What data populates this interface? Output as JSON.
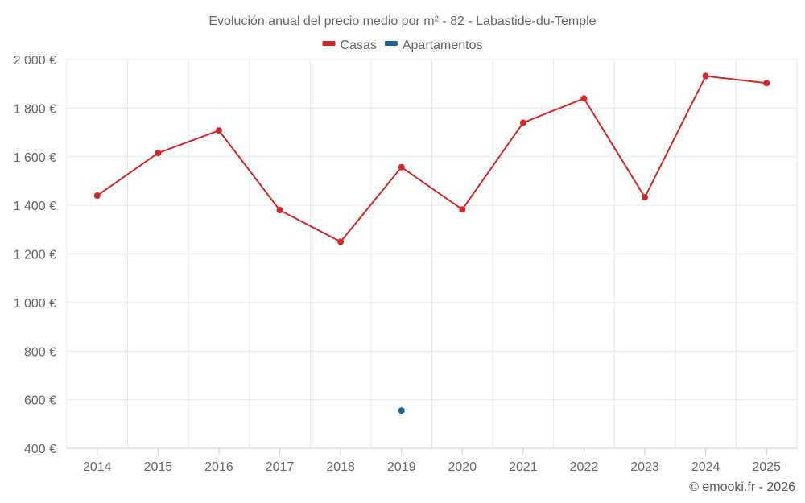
{
  "chart_data": {
    "type": "line",
    "title": "Evolución anual del precio medio por m² - 82 - Labastide-du-Temple",
    "categories": [
      "2014",
      "2015",
      "2016",
      "2017",
      "2018",
      "2019",
      "2020",
      "2021",
      "2022",
      "2023",
      "2024",
      "2025"
    ],
    "series": [
      {
        "name": "Casas",
        "color": "#d62728",
        "values": [
          1440,
          1615,
          1708,
          1380,
          1250,
          1557,
          1383,
          1740,
          1840,
          1433,
          1932,
          1903
        ]
      },
      {
        "name": "Apartamentos",
        "color": "#1a6496",
        "values": [
          null,
          null,
          null,
          null,
          null,
          555,
          null,
          null,
          null,
          null,
          null,
          null
        ]
      }
    ],
    "ylim": [
      400,
      2000
    ],
    "yticks": [
      400,
      600,
      800,
      1000,
      1200,
      1400,
      1600,
      1800,
      2000
    ],
    "ytick_labels": [
      "400 €",
      "600 €",
      "800 €",
      "1 000 €",
      "1 200 €",
      "1 400 €",
      "1 600 €",
      "1 800 €",
      "2 000 €"
    ],
    "xlabel": "",
    "ylabel": "",
    "grid": true,
    "legend_position": "top-center"
  },
  "credit": "© emooki.fr - 2026"
}
